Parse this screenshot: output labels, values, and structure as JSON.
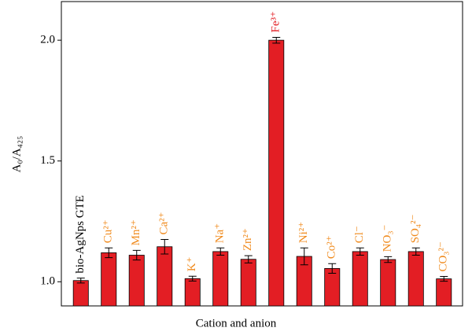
{
  "chart_data": {
    "type": "bar",
    "x_label": "Cation and anion",
    "y_label": "A₀/A₄₂₅",
    "categories": [
      "bio-AgNps GTE",
      "Cu²⁺",
      "Mn²⁺",
      "Ca²⁺",
      "K⁺",
      "Na⁺",
      "Zn²⁺",
      "Fe³⁺",
      "Ni²⁺",
      "Co²⁺",
      "Cl⁻",
      "NO₃⁻",
      "SO₄²⁻",
      "CO₃²⁻"
    ],
    "values": [
      1.005,
      1.12,
      1.11,
      1.145,
      1.013,
      1.125,
      1.093,
      2.0,
      1.105,
      1.055,
      1.125,
      1.092,
      1.125,
      1.012
    ],
    "errors": [
      0.01,
      0.02,
      0.02,
      0.03,
      0.01,
      0.015,
      0.015,
      0.012,
      0.035,
      0.02,
      0.015,
      0.012,
      0.015,
      0.01
    ],
    "color": "#e31e24",
    "label_colors": [
      "#000000",
      "#f08a1c",
      "#f08a1c",
      "#f08a1c",
      "#f08a1c",
      "#f08a1c",
      "#f08a1c",
      "#e31e24",
      "#f08a1c",
      "#f08a1c",
      "#f08a1c",
      "#f08a1c",
      "#f08a1c",
      "#f08a1c"
    ],
    "ylim": [
      0.9,
      2.16
    ],
    "yticks": [
      {
        "value": 1,
        "label": "1.0"
      },
      {
        "value": 1.5,
        "label": "1.5"
      },
      {
        "value": 2,
        "label": "2.0"
      }
    ]
  }
}
